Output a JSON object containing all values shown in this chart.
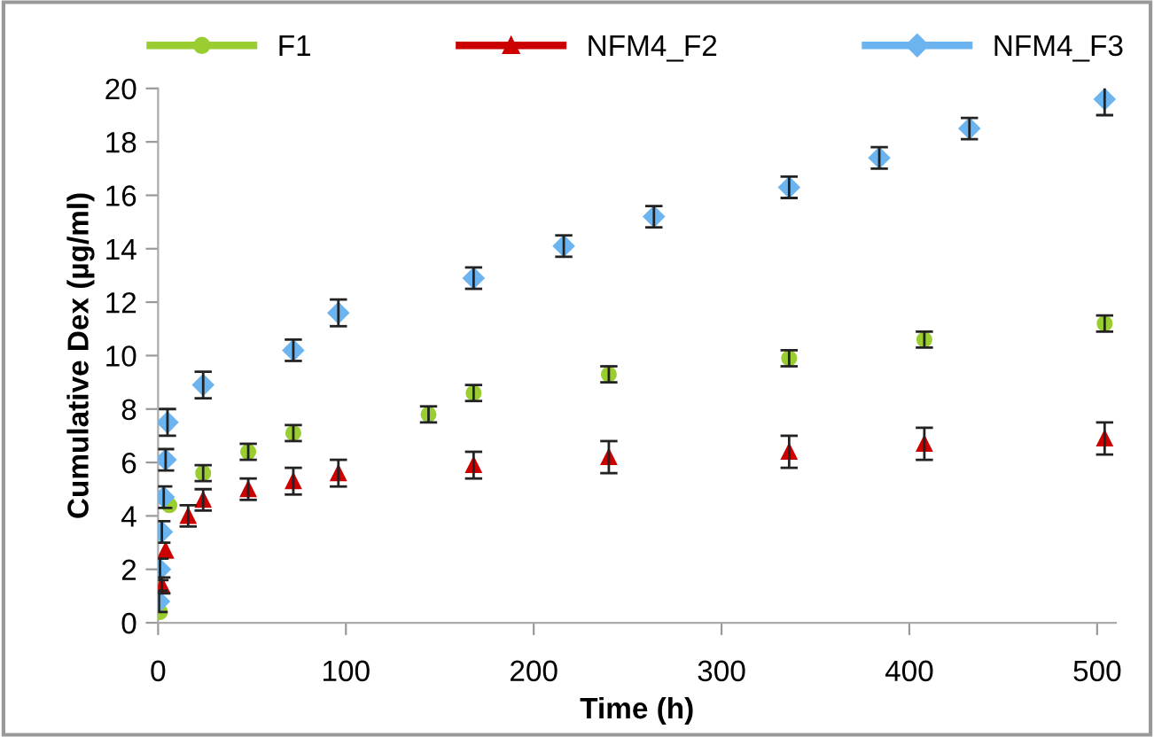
{
  "chart_data": {
    "type": "scatter",
    "xlabel": "Time (h)",
    "ylabel": "Cumulative Dex (µg/ml)",
    "xlim": [
      0,
      510
    ],
    "xticks": [
      0,
      100,
      200,
      300,
      400,
      500
    ],
    "ylim": [
      0,
      20
    ],
    "yticks": [
      0,
      2,
      4,
      6,
      8,
      10,
      12,
      14,
      16,
      18,
      20
    ],
    "grid": false,
    "legend": "top",
    "series": [
      {
        "name": "F1",
        "color": "#9acd32",
        "marker": "circle",
        "x": [
          1,
          2,
          4,
          6,
          24,
          48,
          72,
          144,
          168,
          240,
          336,
          408,
          504
        ],
        "values": [
          0.4,
          null,
          null,
          4.4,
          5.6,
          6.4,
          7.1,
          7.8,
          8.6,
          9.3,
          9.9,
          10.6,
          11.2
        ],
        "errors": [
          null,
          null,
          null,
          null,
          0.3,
          0.3,
          0.3,
          0.3,
          0.3,
          0.3,
          0.3,
          0.3,
          0.3
        ]
      },
      {
        "name": "NFM4_F2",
        "color": "#cc0000",
        "marker": "triangle",
        "x": [
          2,
          4,
          16,
          24,
          48,
          72,
          96,
          168,
          240,
          336,
          408,
          504
        ],
        "values": [
          1.4,
          2.7,
          4.0,
          4.6,
          5.0,
          5.3,
          5.6,
          5.9,
          6.2,
          6.4,
          6.7,
          6.9
        ],
        "errors": [
          0.3,
          null,
          0.4,
          0.4,
          0.4,
          0.5,
          0.5,
          0.5,
          0.6,
          0.6,
          0.6,
          0.6
        ]
      },
      {
        "name": "NFM4_F3",
        "color": "#6cb4f0",
        "marker": "diamond",
        "x": [
          0.5,
          1,
          2,
          3,
          4,
          5,
          24,
          72,
          96,
          168,
          216,
          264,
          336,
          384,
          432,
          504
        ],
        "values": [
          0.8,
          2.0,
          3.4,
          4.7,
          6.1,
          7.5,
          8.9,
          10.2,
          11.6,
          12.9,
          14.1,
          15.2,
          16.3,
          17.4,
          18.5,
          19.6
        ],
        "errors": [
          0.4,
          0.4,
          0.4,
          0.4,
          0.4,
          0.5,
          0.5,
          0.4,
          0.5,
          0.4,
          0.4,
          0.4,
          0.4,
          0.4,
          0.4,
          0.6
        ]
      }
    ]
  }
}
